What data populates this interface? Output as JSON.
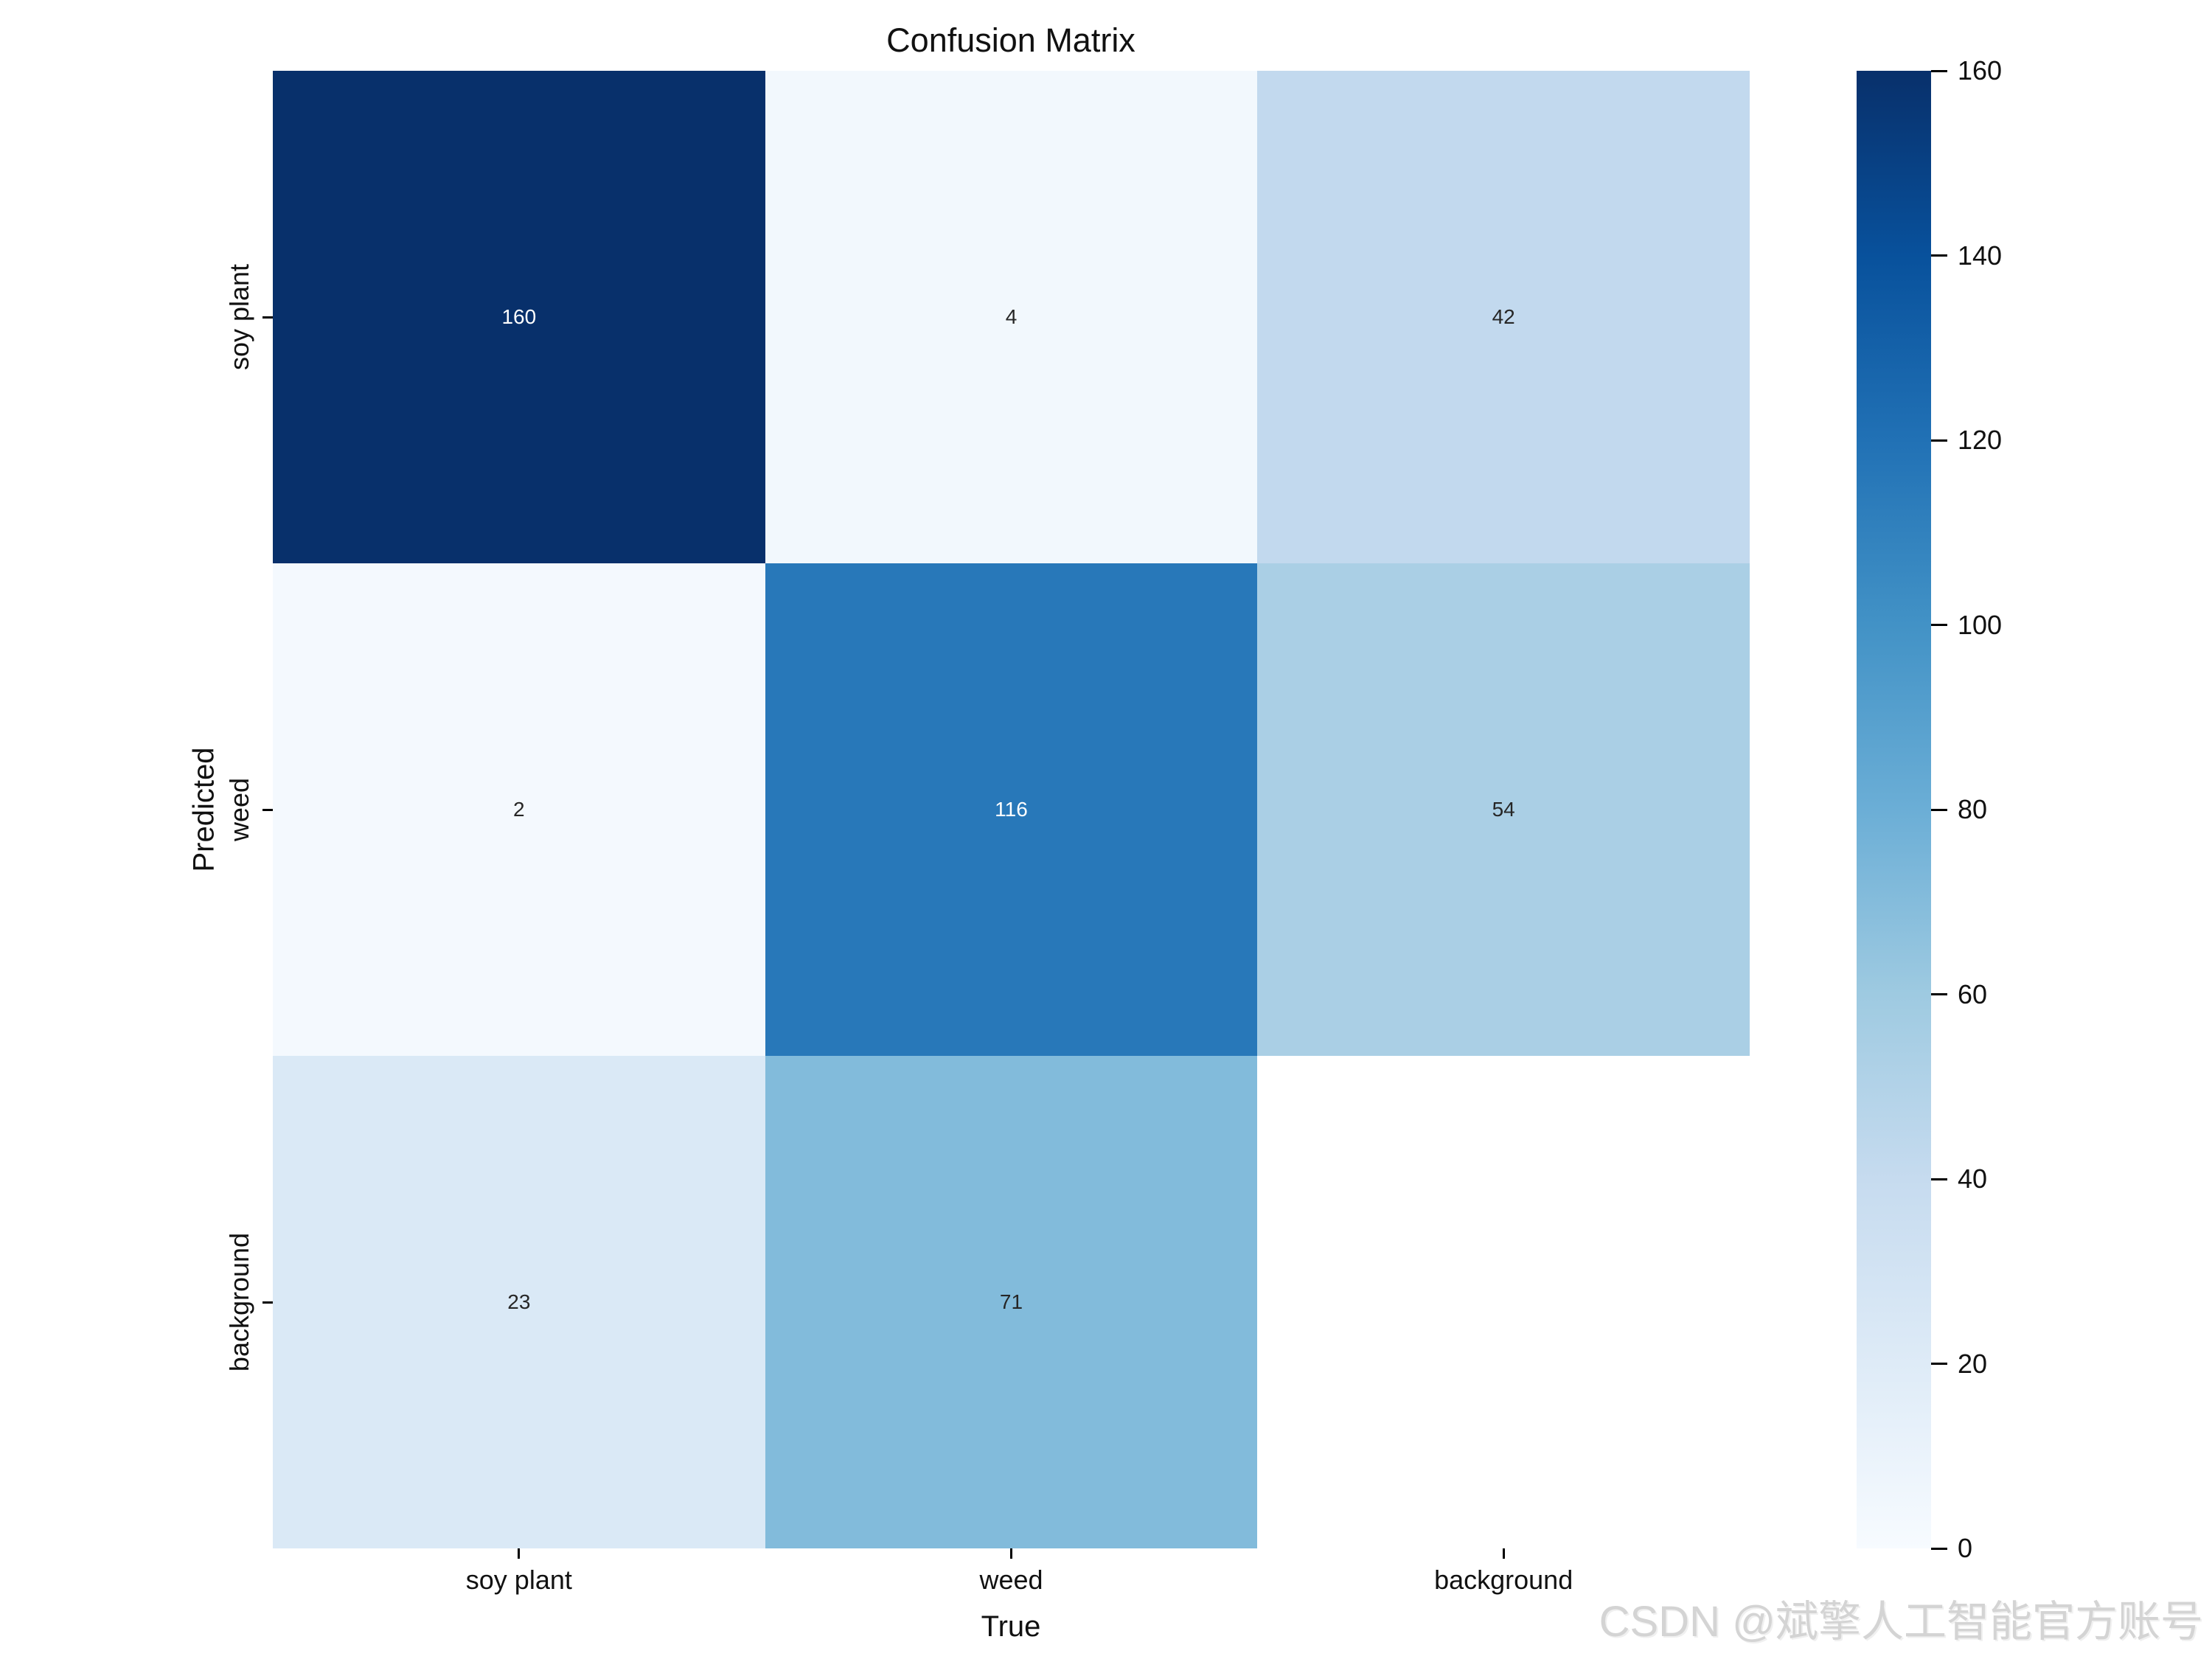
{
  "page": {
    "watermark": "CSDN @斌擎人工智能官方账号"
  },
  "chart_data": {
    "type": "heatmap",
    "title": "Confusion Matrix",
    "xlabel": "True",
    "ylabel": "Predicted",
    "x_categories": [
      "soy plant",
      "weed",
      "background"
    ],
    "y_categories": [
      "soy plant",
      "weed",
      "background"
    ],
    "matrix": [
      [
        160,
        4,
        42
      ],
      [
        2,
        116,
        54
      ],
      [
        23,
        71,
        null
      ]
    ],
    "colormap": "Blues",
    "vmin": 0,
    "vmax": 160,
    "colorbar_ticks": [
      0,
      20,
      40,
      60,
      80,
      100,
      120,
      140,
      160
    ],
    "colorbar_position": "right",
    "grid": false,
    "legend": "none",
    "cell_colors": [
      [
        "#08306b",
        "#f2f8fd",
        "#c2d9ee"
      ],
      [
        "#f4f9fe",
        "#2878b9",
        "#aacfe5"
      ],
      [
        "#dae9f6",
        "#82bbdb",
        "#ffffff"
      ]
    ],
    "cell_text_colors": [
      [
        "#ffffff",
        "#262626",
        "#262626"
      ],
      [
        "#262626",
        "#ffffff",
        "#262626"
      ],
      [
        "#262626",
        "#262626",
        ""
      ]
    ],
    "colormap_stops_low_to_high": [
      "#f7fbff",
      "#deebf7",
      "#c6dbef",
      "#9ecae1",
      "#6baed6",
      "#4292c6",
      "#2171b5",
      "#08519c",
      "#08306b"
    ]
  },
  "colors": {
    "tick": "#000000",
    "text": "#111111",
    "watermark": "#d4d4d4",
    "background": "#ffffff"
  }
}
